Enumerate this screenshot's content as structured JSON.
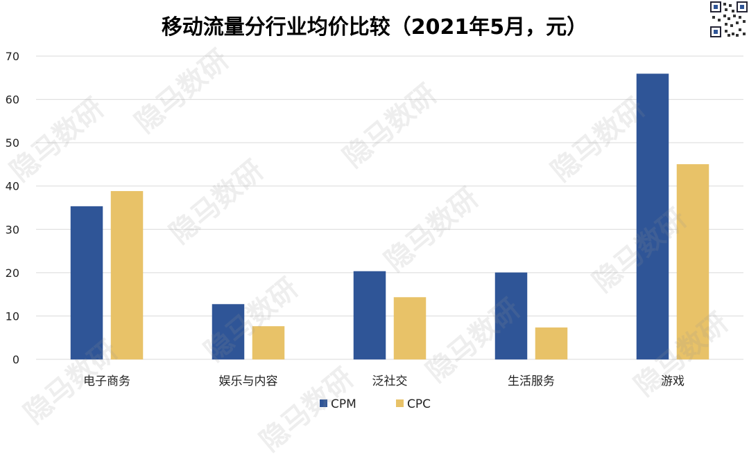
{
  "chart_data": {
    "type": "bar",
    "title": "移动流量分行业均价比较（2021年5月，元）",
    "categories": [
      "电子商务",
      "娱乐与内容",
      "泛社交",
      "生活服务",
      "游戏"
    ],
    "series": [
      {
        "name": "CPM",
        "values": [
          35.3,
          12.7,
          20.3,
          20.0,
          65.9
        ],
        "color": "#2f5597"
      },
      {
        "name": "CPC",
        "values": [
          38.8,
          7.6,
          14.3,
          7.3,
          45.0
        ],
        "color": "#e8c268"
      }
    ],
    "ylim": [
      0,
      70
    ],
    "yticks": [
      0,
      10,
      20,
      30,
      40,
      50,
      60,
      70
    ],
    "grid": true,
    "legend": "bottom-center"
  },
  "watermark": "隐马数研",
  "gridline_color": "#d9d9d9"
}
